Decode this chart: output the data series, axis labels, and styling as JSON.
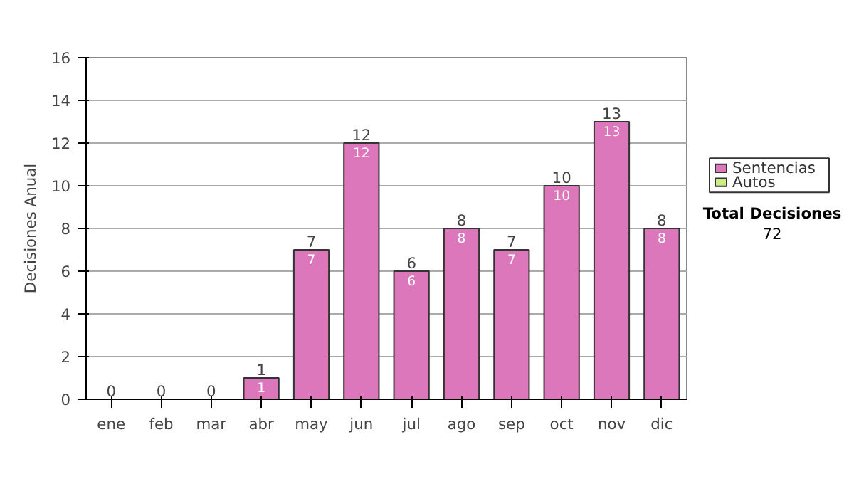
{
  "chart_data": {
    "type": "bar",
    "ylabel": "Decisiones Anual",
    "categories": [
      "ene",
      "feb",
      "mar",
      "abr",
      "may",
      "jun",
      "jul",
      "ago",
      "sep",
      "oct",
      "nov",
      "dic"
    ],
    "stacked": true,
    "series": [
      {
        "name": "Sentencias",
        "color": "#dd77bb",
        "values": [
          0,
          0,
          0,
          1,
          7,
          12,
          6,
          8,
          7,
          10,
          13,
          8
        ],
        "value_labels": [
          null,
          null,
          null,
          "1",
          "7",
          "12",
          "6",
          "8",
          "7",
          "10",
          "13",
          "8"
        ]
      },
      {
        "name": "Autos",
        "color": "#ccee88",
        "values": [
          0,
          0,
          0,
          0,
          0,
          0,
          0,
          0,
          0,
          0,
          0,
          0
        ]
      }
    ],
    "totals": [
      "0",
      "0",
      "0",
      "1",
      "7",
      "12",
      "6",
      "8",
      "7",
      "10",
      "13",
      "8"
    ],
    "ylim": [
      0,
      16
    ],
    "yticks": [
      0,
      2,
      4,
      6,
      8,
      10,
      12,
      14,
      16
    ],
    "grid": "y",
    "legend": "right",
    "annotations": [
      "Total Decisiones",
      "72"
    ]
  }
}
